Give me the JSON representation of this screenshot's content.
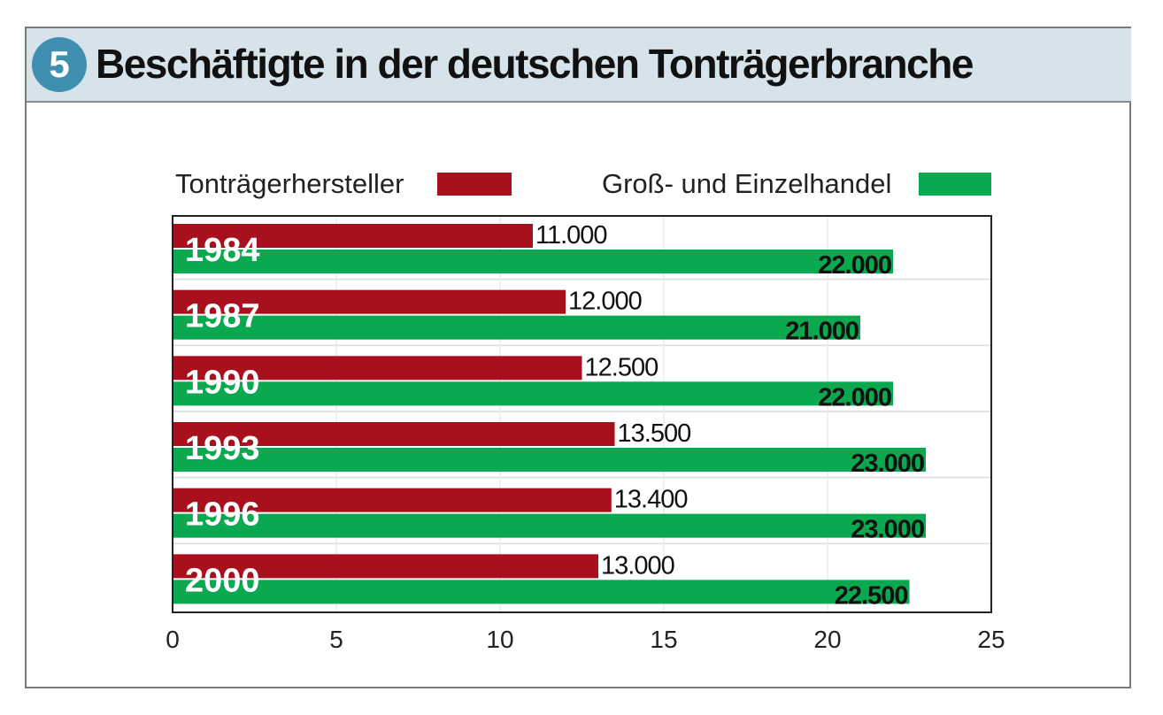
{
  "header": {
    "badge": "5",
    "title": "Beschäftigte in der deutschen Tonträgerbranche"
  },
  "legend": [
    {
      "label": "Tonträgerhersteller",
      "color": "#a8101e"
    },
    {
      "label": "Groß- und Einzelhandel",
      "color": "#0aa84f"
    }
  ],
  "chart_data": {
    "type": "bar",
    "orientation": "horizontal",
    "title": "Beschäftigte in der deutschen Tonträgerbranche",
    "categories": [
      "1984",
      "1987",
      "1990",
      "1993",
      "1996",
      "2000"
    ],
    "series": [
      {
        "name": "Tonträgerhersteller",
        "color": "#a8101e",
        "values": [
          11.0,
          12.0,
          12.5,
          13.5,
          13.4,
          13.0
        ],
        "labels": [
          "11.000",
          "12.000",
          "12.500",
          "13.500",
          "13.400",
          "13.000"
        ]
      },
      {
        "name": "Groß- und Einzelhandel",
        "color": "#0aa84f",
        "values": [
          22.0,
          21.0,
          22.0,
          23.0,
          23.0,
          22.5
        ],
        "labels": [
          "22.000",
          "21.000",
          "22.000",
          "23.000",
          "23.000",
          "22.500"
        ]
      }
    ],
    "xlim": [
      0,
      25
    ],
    "xticks": [
      "0",
      "5",
      "10",
      "15",
      "20",
      "25"
    ],
    "grid": true,
    "legend_position": "top"
  }
}
